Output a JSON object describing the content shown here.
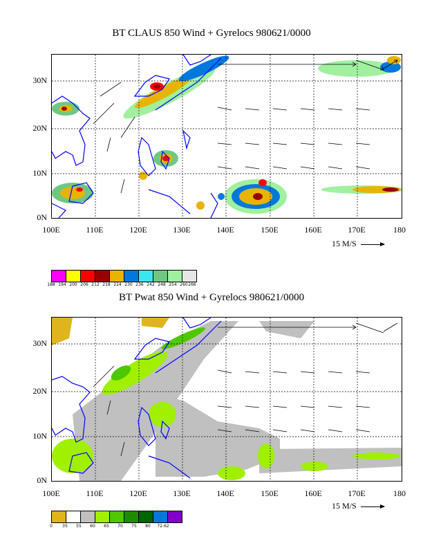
{
  "panels": [
    {
      "title": "BT CLAUS 850 Wind + Gyrelocs 980621/0000",
      "y_ticks": [
        "30N",
        "20N",
        "10N",
        "0N"
      ],
      "x_ticks": [
        "100E",
        "110E",
        "120E",
        "130E",
        "140E",
        "150E",
        "160E",
        "170E",
        "180"
      ],
      "ref_vector": "15 M/S",
      "legend_colors": [
        "#ff00ff",
        "#ffff00",
        "#ff0000",
        "#9b0000",
        "#e8b400",
        "#0078dc",
        "#3ce6f0",
        "#6ec882",
        "#a0f0a0",
        "#e6e6e6"
      ],
      "legend_labels": [
        "188",
        "194",
        "200",
        "206",
        "212",
        "218",
        "224",
        "230",
        "236",
        "242",
        "248",
        "254",
        "260",
        "266"
      ]
    },
    {
      "title": "BT Pwat 850 Wind + Gyrelocs 980621/0000",
      "y_ticks": [
        "30N",
        "20N",
        "10N",
        "0N"
      ],
      "x_ticks": [
        "100E",
        "110E",
        "120E",
        "130E",
        "140E",
        "150E",
        "160E",
        "170E",
        "180"
      ],
      "ref_vector": "15 M/S",
      "legend_colors": [
        "#e0b41e",
        "#ffffff",
        "#c0c0c0",
        "#a0f000",
        "#50c800",
        "#1e8c00",
        "#006400",
        "#0078dc",
        "#8200c8"
      ],
      "legend_labels": [
        "0",
        "35",
        "55",
        "60",
        "65",
        "70",
        "75",
        "80",
        "72.62"
      ]
    }
  ]
}
